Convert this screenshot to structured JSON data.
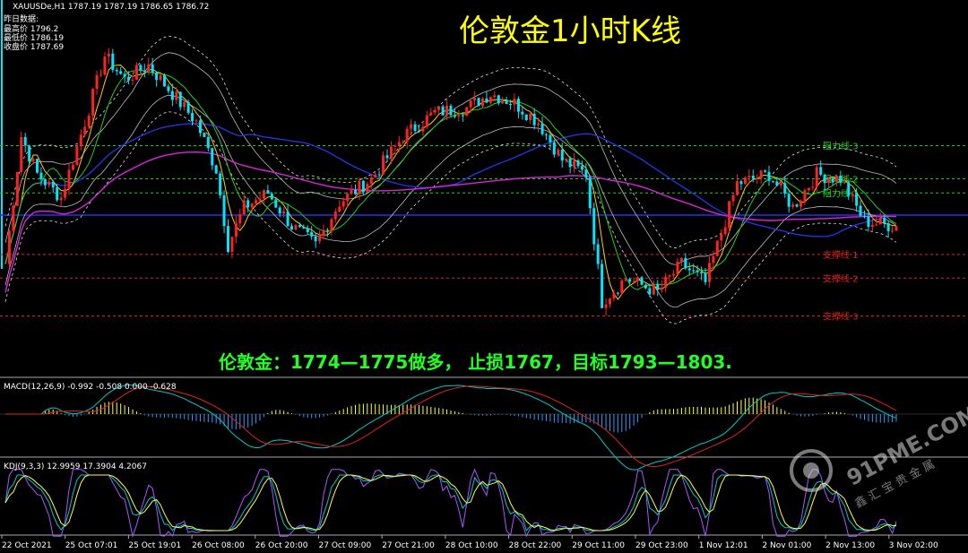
{
  "header": {
    "symbol_line": "XAUUSDe,H1  1787.19 1787.19 1786.65 1786.72",
    "prev_data_title": "昨日数据:",
    "prev_high": "最高价 1796.2",
    "prev_low": "最低价 1786.19",
    "prev_close": "收盘价 1787.69"
  },
  "title": "伦敦金1小时K线",
  "strategy_text": "伦敦金：1774—1775做多， 止损1767，目标1793—1803.",
  "watermark": {
    "top": "91PME.COM",
    "bottom": "鑫 汇 宝 贵 金 属"
  },
  "levels": [
    {
      "label": "阻力线 3",
      "kind": "resistance",
      "value": 1803
    },
    {
      "label": "阻力线 2",
      "kind": "resistance",
      "value": 1796
    },
    {
      "label": "阻力线 1",
      "kind": "resistance",
      "value": 1793
    },
    {
      "label": "支撑线 1",
      "kind": "support",
      "value": 1780
    },
    {
      "label": "支撑线 2",
      "kind": "support",
      "value": 1775
    },
    {
      "label": "支撑线 3",
      "kind": "support",
      "value": 1767
    }
  ],
  "macd_label": "MACD(12,26,9) -0.992 -0.508 0.000 -0.628",
  "kdj_label": "KDJ(9,3,3) 12.9959 17.3904 4.2067",
  "x_ticks": [
    "22 Oct 2021",
    "25 Oct 07:01",
    "25 Oct 19:01",
    "26 Oct 08:00",
    "26 Oct 20:00",
    "27 Oct 09:00",
    "27 Oct 21:00",
    "28 Oct 10:00",
    "28 Oct 22:00",
    "29 Oct 11:00",
    "29 Oct 23:00",
    "1 Nov 12:01",
    "2 Nov 01:00",
    "2 Nov 13:00",
    "3 Nov 02:00"
  ],
  "colors": {
    "bull": "#ff2020",
    "bear": "#00e5ff",
    "resistance": "#22cc22",
    "support": "#dd2222",
    "ma_blue": "#2233dd",
    "ma_magenta": "#dd22dd",
    "title": "#ffff00",
    "strategy": "#22ff22",
    "macd_line": "#00c8c8",
    "macd_signal": "#dd2222",
    "kdj_k": "#00c8c8",
    "kdj_d": "#ffff44",
    "kdj_j": "#aa55ff"
  },
  "chart_data": {
    "type": "candlestick",
    "ylim": [
      1758,
      1830
    ],
    "price_path": [
      {
        "i": 0,
        "p": 1778
      },
      {
        "i": 4,
        "p": 1805
      },
      {
        "i": 8,
        "p": 1797
      },
      {
        "i": 14,
        "p": 1792
      },
      {
        "i": 20,
        "p": 1808
      },
      {
        "i": 25,
        "p": 1822
      },
      {
        "i": 30,
        "p": 1817
      },
      {
        "i": 36,
        "p": 1820
      },
      {
        "i": 42,
        "p": 1814
      },
      {
        "i": 48,
        "p": 1808
      },
      {
        "i": 53,
        "p": 1798
      },
      {
        "i": 56,
        "p": 1782
      },
      {
        "i": 60,
        "p": 1790
      },
      {
        "i": 66,
        "p": 1793
      },
      {
        "i": 72,
        "p": 1786
      },
      {
        "i": 78,
        "p": 1782
      },
      {
        "i": 84,
        "p": 1791
      },
      {
        "i": 92,
        "p": 1796
      },
      {
        "i": 100,
        "p": 1805
      },
      {
        "i": 108,
        "p": 1810
      },
      {
        "i": 116,
        "p": 1811
      },
      {
        "i": 122,
        "p": 1814
      },
      {
        "i": 128,
        "p": 1812
      },
      {
        "i": 134,
        "p": 1808
      },
      {
        "i": 140,
        "p": 1800
      },
      {
        "i": 146,
        "p": 1797
      },
      {
        "i": 150,
        "p": 1770
      },
      {
        "i": 156,
        "p": 1775
      },
      {
        "i": 164,
        "p": 1772
      },
      {
        "i": 170,
        "p": 1778
      },
      {
        "i": 176,
        "p": 1774
      },
      {
        "i": 184,
        "p": 1795
      },
      {
        "i": 192,
        "p": 1797
      },
      {
        "i": 198,
        "p": 1790
      },
      {
        "i": 204,
        "p": 1797
      },
      {
        "i": 210,
        "p": 1796
      },
      {
        "i": 216,
        "p": 1787
      },
      {
        "i": 224,
        "p": 1786
      }
    ]
  }
}
